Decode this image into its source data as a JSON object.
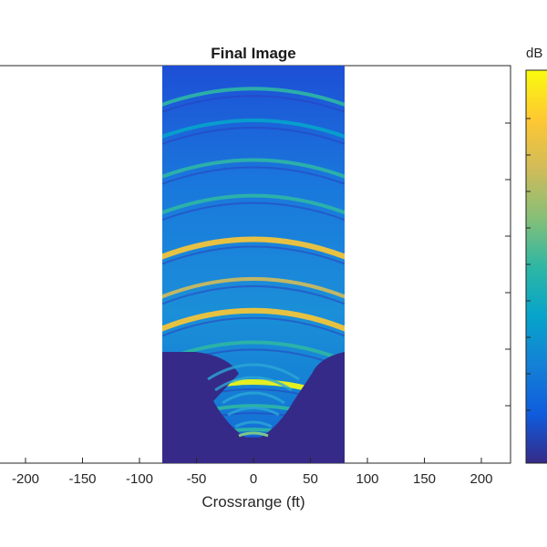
{
  "chart_data": {
    "type": "heatmap",
    "title": "Final Image",
    "xlabel": "Crossrange (ft)",
    "ylabel": "",
    "xlim": [
      -225,
      225
    ],
    "x_ticks": [
      -200,
      -150,
      -100,
      -50,
      0,
      50,
      100,
      150,
      200
    ],
    "x_tick_labels": [
      "-200",
      "-150",
      "-100",
      "-50",
      "0",
      "50",
      "100",
      "150",
      "200"
    ],
    "image_x_extent": [
      -80,
      80
    ],
    "colormap": "parula",
    "colorbar": {
      "label": "dB",
      "colors": [
        "#352a87",
        "#0f5cdd",
        "#1481d6",
        "#06a4ca",
        "#2eb7a4",
        "#87bf77",
        "#d1bb59",
        "#fec832",
        "#f9fb0e"
      ]
    },
    "arcs": [
      {
        "depth_fraction": 0.07,
        "intensity": 0.45
      },
      {
        "depth_fraction": 0.15,
        "intensity": 0.4
      },
      {
        "depth_fraction": 0.25,
        "intensity": 0.55
      },
      {
        "depth_fraction": 0.34,
        "intensity": 0.5
      },
      {
        "depth_fraction": 0.45,
        "intensity": 0.92
      },
      {
        "depth_fraction": 0.55,
        "intensity": 0.7
      },
      {
        "depth_fraction": 0.63,
        "intensity": 0.9
      },
      {
        "depth_fraction": 0.71,
        "intensity": 0.55
      },
      {
        "depth_fraction": 0.81,
        "intensity": 1.0
      },
      {
        "depth_fraction": 0.87,
        "intensity": 0.5
      },
      {
        "depth_fraction": 0.93,
        "intensity": 0.45
      },
      {
        "depth_fraction": 0.97,
        "intensity": 0.55
      }
    ]
  }
}
